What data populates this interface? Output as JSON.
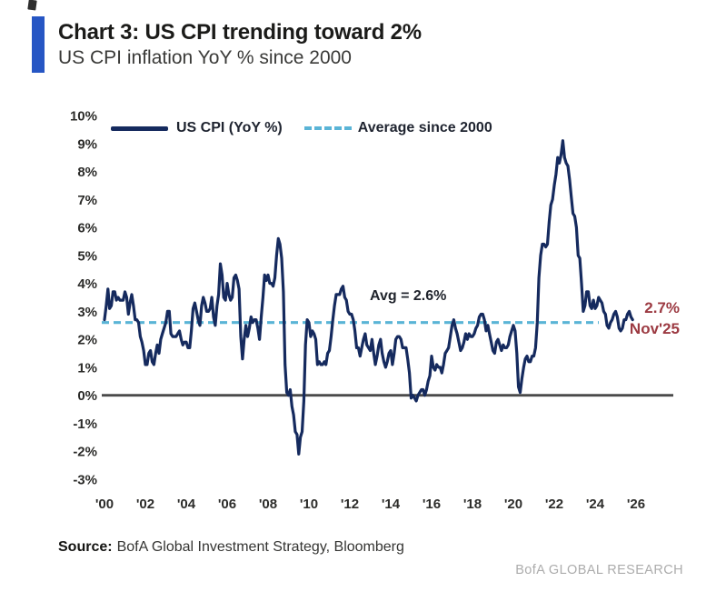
{
  "header": {
    "title": "Chart 3: US CPI trending toward 2%",
    "subtitle": "US CPI inflation YoY % since 2000",
    "accent_color": "#2656c4"
  },
  "legend": {
    "items": [
      {
        "label": "US CPI (YoY %)",
        "style": "solid"
      },
      {
        "label": "Average since 2000",
        "style": "dashed"
      }
    ]
  },
  "chart_data": {
    "type": "line",
    "title": "Chart 3: US CPI trending toward 2%",
    "subtitle": "US CPI inflation YoY % since 2000",
    "xlabel": "",
    "ylabel": "",
    "ylim": [
      -3,
      10
    ],
    "grid": "off",
    "legend_position": "top",
    "y_ticks": [
      "10%",
      "9%",
      "8%",
      "7%",
      "6%",
      "5%",
      "4%",
      "3%",
      "2%",
      "1%",
      "0%",
      "-1%",
      "-2%",
      "-3%"
    ],
    "y_tick_values": [
      10,
      9,
      8,
      7,
      6,
      5,
      4,
      3,
      2,
      1,
      0,
      -1,
      -2,
      -3
    ],
    "x_ticks": [
      "'00",
      "'02",
      "'04",
      "'06",
      "'08",
      "'10",
      "'12",
      "'14",
      "'16",
      "'18",
      "'20",
      "'22",
      "'24",
      "'26"
    ],
    "x_tick_years": [
      2000,
      2002,
      2004,
      2006,
      2008,
      2010,
      2012,
      2014,
      2016,
      2018,
      2020,
      2022,
      2024,
      2026
    ],
    "series": [
      {
        "name": "US CPI (YoY %)",
        "color": "#152a5e",
        "frequency": "monthly",
        "start": "2000-01",
        "end": "2025-11",
        "values": [
          2.7,
          3.2,
          3.8,
          3.1,
          3.2,
          3.7,
          3.7,
          3.4,
          3.5,
          3.4,
          3.4,
          3.4,
          3.7,
          3.5,
          2.9,
          3.3,
          3.6,
          3.2,
          2.7,
          2.7,
          2.6,
          2.1,
          1.9,
          1.6,
          1.1,
          1.1,
          1.5,
          1.6,
          1.2,
          1.1,
          1.5,
          1.8,
          1.5,
          2.0,
          2.2,
          2.4,
          2.6,
          3.0,
          3.0,
          2.2,
          2.1,
          2.1,
          2.1,
          2.2,
          2.3,
          2.0,
          1.8,
          1.9,
          1.9,
          1.7,
          1.7,
          2.3,
          3.1,
          3.3,
          3.0,
          2.7,
          2.5,
          3.2,
          3.5,
          3.3,
          3.0,
          3.0,
          3.1,
          3.5,
          2.8,
          2.5,
          3.2,
          3.6,
          4.7,
          4.3,
          3.5,
          3.4,
          4.0,
          3.6,
          3.4,
          3.5,
          4.2,
          4.3,
          4.1,
          3.8,
          2.1,
          1.3,
          2.0,
          2.5,
          2.1,
          2.4,
          2.8,
          2.6,
          2.7,
          2.7,
          2.4,
          2.0,
          2.8,
          3.5,
          4.3,
          4.1,
          4.3,
          4.0,
          4.0,
          3.9,
          4.2,
          5.0,
          5.6,
          5.4,
          4.9,
          3.7,
          1.1,
          0.1,
          0.0,
          0.2,
          -0.4,
          -0.7,
          -1.3,
          -1.4,
          -2.1,
          -1.5,
          -1.3,
          -0.2,
          1.8,
          2.7,
          2.6,
          2.1,
          2.3,
          2.2,
          2.0,
          1.1,
          1.2,
          1.1,
          1.1,
          1.2,
          1.1,
          1.5,
          1.6,
          2.1,
          2.7,
          3.2,
          3.6,
          3.6,
          3.6,
          3.8,
          3.9,
          3.5,
          3.4,
          3.0,
          2.9,
          2.9,
          2.7,
          2.3,
          1.7,
          1.7,
          1.4,
          1.7,
          2.0,
          2.2,
          1.8,
          1.7,
          1.6,
          2.0,
          1.5,
          1.1,
          1.4,
          1.8,
          2.0,
          1.5,
          1.2,
          1.0,
          1.2,
          1.5,
          1.6,
          1.1,
          1.5,
          2.0,
          2.1,
          2.1,
          2.0,
          1.7,
          1.7,
          1.7,
          1.3,
          0.8,
          -0.1,
          0.0,
          -0.1,
          -0.2,
          0.0,
          0.1,
          0.2,
          0.2,
          0.0,
          0.2,
          0.5,
          0.7,
          1.4,
          1.0,
          0.9,
          1.1,
          1.0,
          1.0,
          0.8,
          1.1,
          1.5,
          1.6,
          1.7,
          2.1,
          2.5,
          2.7,
          2.4,
          2.2,
          1.9,
          1.6,
          1.7,
          1.9,
          2.2,
          2.0,
          2.2,
          2.1,
          2.1,
          2.2,
          2.4,
          2.5,
          2.8,
          2.9,
          2.9,
          2.7,
          2.3,
          2.5,
          2.2,
          1.9,
          1.6,
          1.5,
          1.9,
          2.0,
          1.8,
          1.6,
          1.8,
          1.7,
          1.7,
          1.8,
          2.1,
          2.3,
          2.5,
          2.3,
          1.5,
          0.3,
          0.1,
          0.6,
          1.0,
          1.3,
          1.4,
          1.2,
          1.2,
          1.4,
          1.4,
          1.7,
          2.6,
          4.2,
          5.0,
          5.4,
          5.4,
          5.3,
          5.4,
          6.2,
          6.8,
          7.0,
          7.5,
          7.9,
          8.5,
          8.3,
          8.6,
          9.1,
          8.5,
          8.3,
          8.2,
          7.7,
          7.1,
          6.5,
          6.4,
          6.0,
          5.0,
          4.9,
          4.0,
          3.0,
          3.2,
          3.7,
          3.7,
          3.2,
          3.1,
          3.4,
          3.1,
          3.2,
          3.5,
          3.4,
          3.3,
          3.0,
          2.9,
          2.5,
          2.4,
          2.6,
          2.7,
          2.9,
          3.0,
          2.8,
          2.4,
          2.3,
          2.4,
          2.7,
          2.7,
          2.9,
          3.0,
          2.8,
          2.7
        ]
      }
    ],
    "average_line": {
      "label": "Average since 2000",
      "value": 2.6,
      "color": "#5ab4d6",
      "annotation": "Avg = 2.6%"
    },
    "last_point": {
      "value": 2.7,
      "date": "2025-11",
      "value_label": "2.7%",
      "date_label": "Nov'25",
      "color": "#9c3a42"
    },
    "zero_line_color": "#4a4a4a"
  },
  "footer": {
    "source_label": "Source:",
    "source_text": "BofA Global Investment Strategy, Bloomberg",
    "brand": "BofA GLOBAL RESEARCH"
  }
}
